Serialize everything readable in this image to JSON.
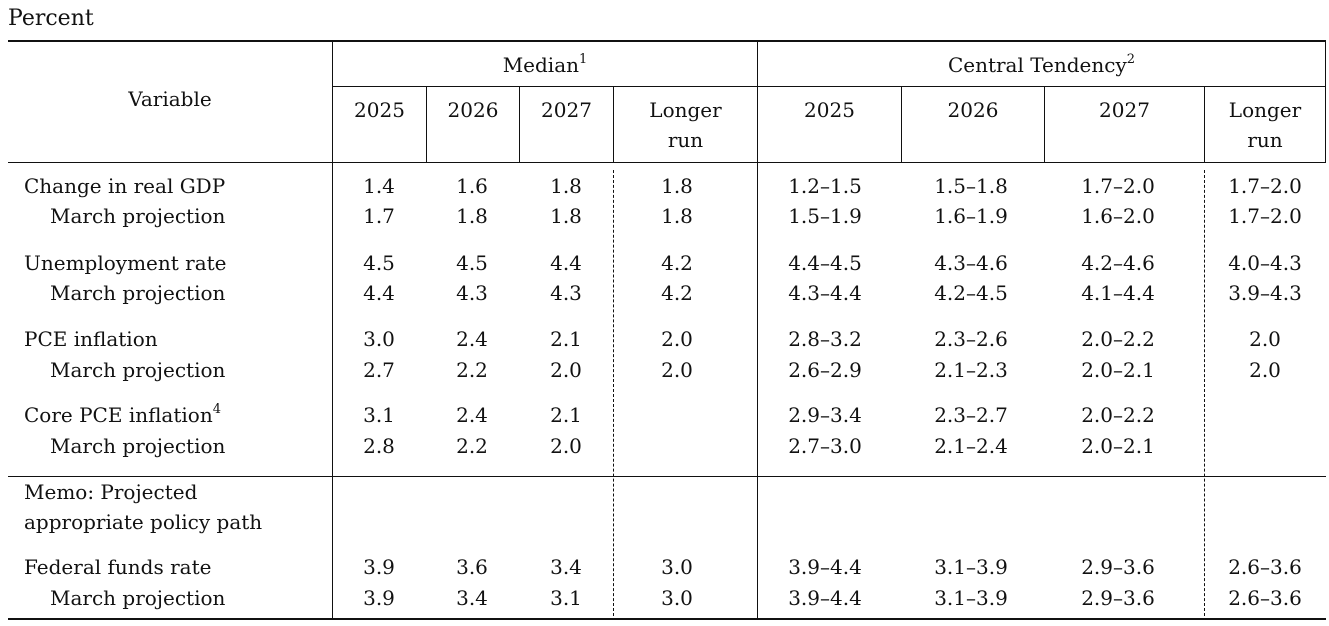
{
  "unit_label": "Percent",
  "header": {
    "variable": "Variable",
    "median": "Median",
    "median_note": "1",
    "central_tendency": "Central Tendency",
    "central_tendency_note": "2",
    "years": [
      "2025",
      "2026",
      "2027"
    ],
    "longer_run_line1": "Longer",
    "longer_run_line2": "run"
  },
  "rows": [
    {
      "label": "Change in real GDP",
      "note": "",
      "indent": false,
      "median": [
        "1.4",
        "1.6",
        "1.8",
        "1.8"
      ],
      "central": [
        "1.2–1.5",
        "1.5–1.8",
        "1.7–2.0",
        "1.7–2.0"
      ]
    },
    {
      "label": "March projection",
      "note": "",
      "indent": true,
      "median": [
        "1.7",
        "1.8",
        "1.8",
        "1.8"
      ],
      "central": [
        "1.5–1.9",
        "1.6–1.9",
        "1.6–2.0",
        "1.7–2.0"
      ]
    },
    {
      "label": "Unemployment rate",
      "note": "",
      "indent": false,
      "median": [
        "4.5",
        "4.5",
        "4.4",
        "4.2"
      ],
      "central": [
        "4.4–4.5",
        "4.3–4.6",
        "4.2–4.6",
        "4.0–4.3"
      ]
    },
    {
      "label": "March projection",
      "note": "",
      "indent": true,
      "median": [
        "4.4",
        "4.3",
        "4.3",
        "4.2"
      ],
      "central": [
        "4.3–4.4",
        "4.2–4.5",
        "4.1–4.4",
        "3.9–4.3"
      ]
    },
    {
      "label": "PCE inflation",
      "note": "",
      "indent": false,
      "median": [
        "3.0",
        "2.4",
        "2.1",
        "2.0"
      ],
      "central": [
        "2.8–3.2",
        "2.3–2.6",
        "2.0–2.2",
        "2.0"
      ]
    },
    {
      "label": "March projection",
      "note": "",
      "indent": true,
      "median": [
        "2.7",
        "2.2",
        "2.0",
        "2.0"
      ],
      "central": [
        "2.6–2.9",
        "2.1–2.3",
        "2.0–2.1",
        "2.0"
      ]
    },
    {
      "label": "Core PCE inflation",
      "note": "4",
      "indent": false,
      "median": [
        "3.1",
        "2.4",
        "2.1",
        ""
      ],
      "central": [
        "2.9–3.4",
        "2.3–2.7",
        "2.0–2.2",
        ""
      ]
    },
    {
      "label": "March projection",
      "note": "",
      "indent": true,
      "median": [
        "2.8",
        "2.2",
        "2.0",
        ""
      ],
      "central": [
        "2.7–3.0",
        "2.1–2.4",
        "2.0–2.1",
        ""
      ]
    }
  ],
  "memo": {
    "line1": "Memo: Projected",
    "line2": "appropriate policy path",
    "rows": [
      {
        "label": "Federal funds rate",
        "note": "",
        "indent": false,
        "median": [
          "3.9",
          "3.6",
          "3.4",
          "3.0"
        ],
        "central": [
          "3.9–4.4",
          "3.1–3.9",
          "2.9–3.6",
          "2.6–3.6"
        ]
      },
      {
        "label": "March projection",
        "note": "",
        "indent": true,
        "median": [
          "3.9",
          "3.4",
          "3.1",
          "3.0"
        ],
        "central": [
          "3.9–4.4",
          "3.1–3.9",
          "2.9–3.6",
          "2.6–3.6"
        ]
      }
    ]
  }
}
